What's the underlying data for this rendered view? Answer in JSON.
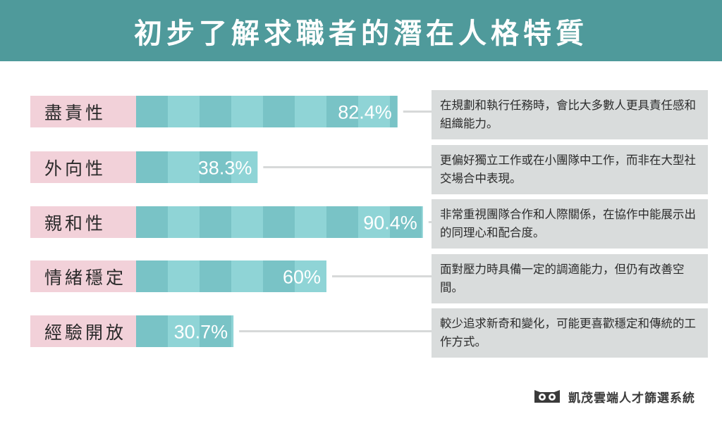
{
  "header": {
    "title": "初步了解求職者的潛在人格特質"
  },
  "chart_data": {
    "type": "bar",
    "orientation": "horizontal",
    "title": "初步了解求職者的潛在人格特質",
    "unit": "%",
    "xlim": [
      0,
      100
    ],
    "grid": false,
    "categories": [
      "盡責性",
      "外向性",
      "親和性",
      "情緒穩定",
      "經驗開放"
    ],
    "values": [
      82.4,
      38.3,
      90.4,
      60,
      30.7
    ],
    "value_labels": [
      "82.4%",
      "38.3%",
      "90.4%",
      "60%",
      "30.7%"
    ],
    "descriptions": [
      "在規劃和執行任務時，會比大多數人更具責任感和組織能力。",
      "更偏好獨立工作或在小團隊中工作，而非在大型社交場合中表現。",
      "非常重視團隊合作和人際關係，在協作中能展示出的同理心和配合度。",
      "面對壓力時具備一定的調適能力，但仍有改善空間。",
      "較少追求新奇和變化，可能更喜歡穩定和傳統的工作方式。"
    ],
    "colors": {
      "bar_light": "#8fd4d6",
      "bar_dark": "#79c3c6",
      "label_bg": "#f2d1d9",
      "desc_bg": "#d9dcdc",
      "connector": "#d7d9d9"
    }
  },
  "footer": {
    "brand": "凱茂雲端人才篩選系統",
    "logo_icon": "owl-icon"
  }
}
